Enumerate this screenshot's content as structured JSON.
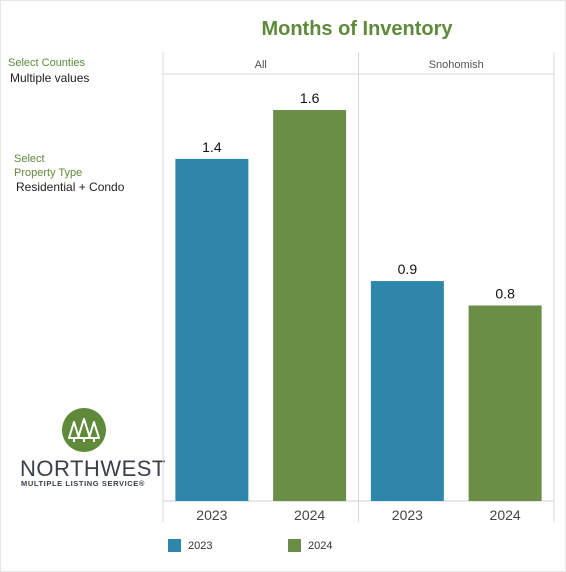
{
  "title": "Months of Inventory",
  "filters": {
    "counties_label": "Select Counties",
    "counties_value": "Multiple values",
    "property_label_line1": "Select",
    "property_label_line2": "Property Type",
    "property_value": "Residential + Condo"
  },
  "logo": {
    "name": "NORTHWEST",
    "subtitle": "MULTIPLE LISTING SERVICE®",
    "icon": "trees-icon"
  },
  "colors": {
    "2023": "#2e86ab",
    "2024": "#6b8e46"
  },
  "legend": [
    {
      "label": "2023",
      "color": "#2e86ab"
    },
    {
      "label": "2024",
      "color": "#6b8e46"
    }
  ],
  "chart_data": {
    "type": "bar",
    "title": "Months of Inventory",
    "panels": [
      "All",
      "Snohomish"
    ],
    "categories": [
      "2023",
      "2024"
    ],
    "series": [
      {
        "name": "2023",
        "values": [
          1.4,
          0.9
        ]
      },
      {
        "name": "2024",
        "values": [
          1.6,
          0.8
        ]
      }
    ],
    "data_labels": [
      [
        "1.4",
        "1.6"
      ],
      [
        "0.9",
        "0.8"
      ]
    ],
    "ylim": [
      0,
      1.75
    ],
    "grid": false,
    "legend_position": "bottom"
  }
}
